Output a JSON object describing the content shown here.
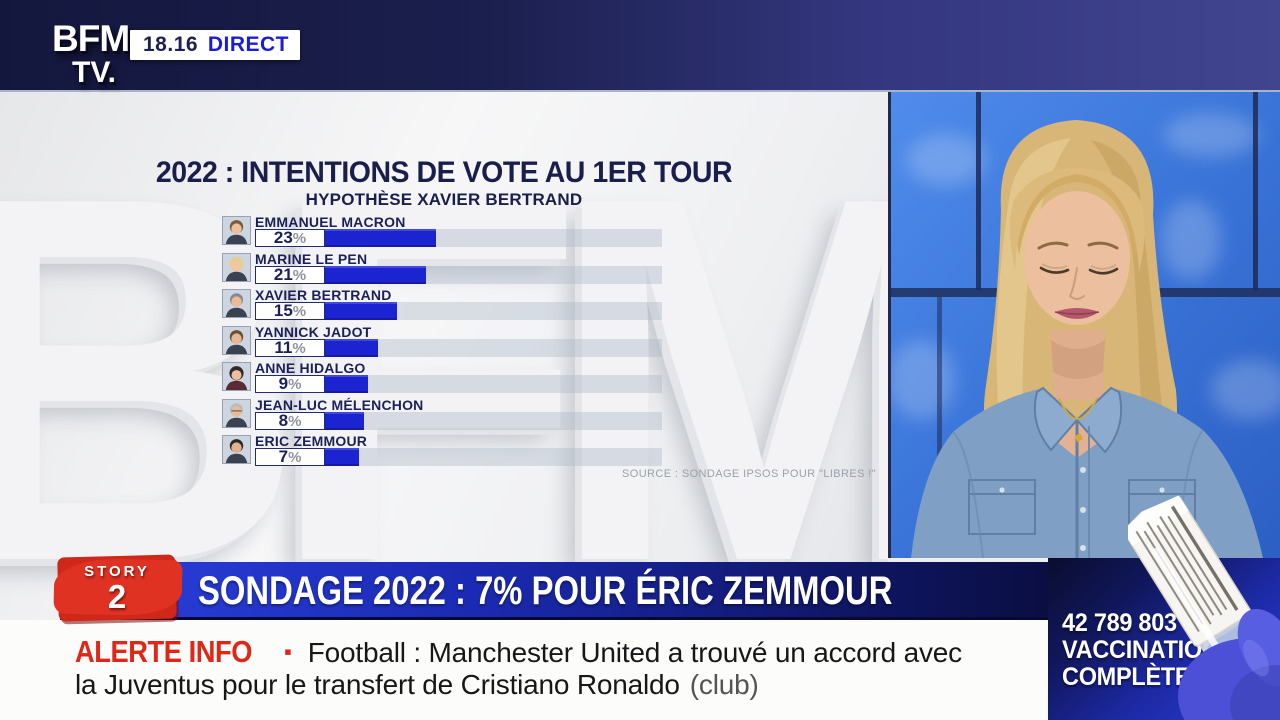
{
  "header": {
    "logo_line1": "BFM",
    "logo_line2": "TV.",
    "time": "18.16",
    "live_label": "DIRECT"
  },
  "watermark": "BFM",
  "chart_data": {
    "type": "bar",
    "title": "2022 : INTENTIONS DE VOTE AU 1ER TOUR",
    "subtitle": "HYPOTHÈSE XAVIER BERTRAND",
    "categories": [
      "EMMANUEL MACRON",
      "MARINE LE PEN",
      "XAVIER BERTRAND",
      "YANNICK JADOT",
      "ANNE HIDALGO",
      "JEAN-LUC MÉLENCHON",
      "ERIC ZEMMOUR"
    ],
    "values": [
      23,
      21,
      15,
      11,
      9,
      8,
      7
    ],
    "unit": "%",
    "xlim": [
      0,
      70
    ],
    "bar_color": "#1c23d0",
    "source": "SOURCE : SONDAGE IPSOS POUR \"LIBRES !\""
  },
  "story_banner": {
    "badge_top": "STORY",
    "badge_number": "2",
    "headline": "SONDAGE 2022 : 7% POUR ÉRIC ZEMMOUR"
  },
  "alert": {
    "label": "ALERTE INFO",
    "bullet": "▪",
    "line1": "Football : Manchester United a trouvé un accord avec",
    "line2": "la Juventus pour le transfert de Cristiano Ronaldo",
    "line2_suffix": "(club)"
  },
  "vaccination": {
    "count": "42 789 803",
    "line2": "VACCINATIONS",
    "line3": "COMPLÈTES"
  },
  "colors": {
    "bar_blue": "#1c23d0",
    "direct_blue": "#1c1cd8",
    "alert_red": "#e02717",
    "banner_blue": "#1b2ab2"
  }
}
